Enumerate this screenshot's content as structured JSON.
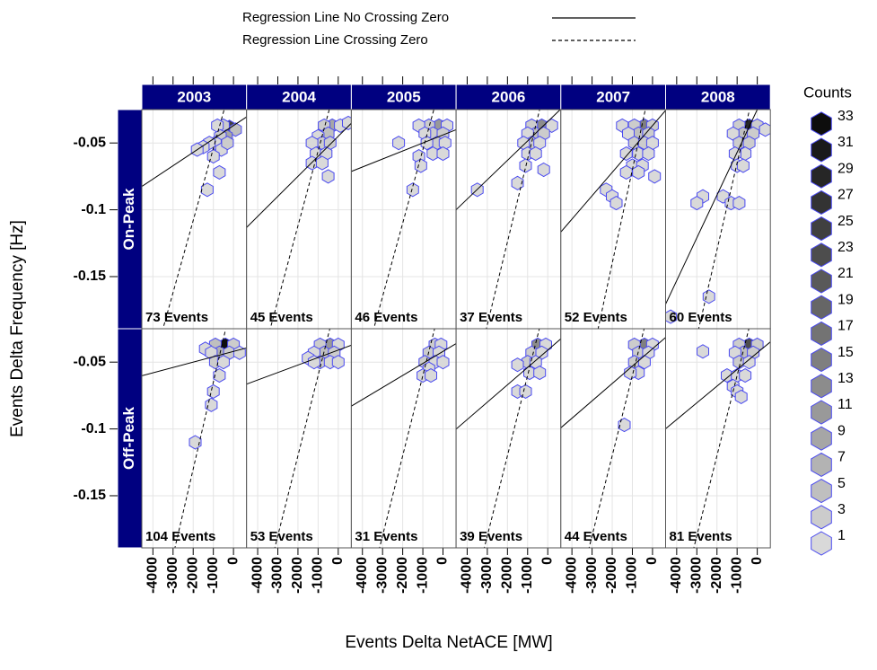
{
  "chart_data": {
    "type": "hexbin",
    "x_label": "Events Delta NetACE [MW]",
    "y_label": "Events Delta Frequency [Hz]",
    "xlim": [
      -4550,
      650
    ],
    "ylim": [
      -0.189,
      -0.025
    ],
    "xticks": [
      -4000,
      -3000,
      -2000,
      -1000,
      0
    ],
    "yticks": [
      -0.05,
      -0.1,
      -0.15
    ],
    "grid": true,
    "columns": [
      "2003",
      "2004",
      "2005",
      "2006",
      "2007",
      "2008"
    ],
    "rows": [
      "On-Peak",
      "Off-Peak"
    ],
    "hex_stroke": "#4a4af0",
    "line_color": "#000000",
    "legend": [
      {
        "name": "Regression Line No Crossing Zero",
        "dash": "solid"
      },
      {
        "name": "Regression Line Crossing Zero",
        "dash": "dashed"
      }
    ],
    "counts_legend": {
      "title": "Counts",
      "values": [
        1,
        3,
        5,
        7,
        9,
        11,
        13,
        15,
        17,
        19,
        21,
        23,
        25,
        27,
        29,
        31,
        33
      ],
      "colors": [
        "#d9d9d9",
        "#cccccc",
        "#bfbfbf",
        "#b3b3b3",
        "#a6a6a6",
        "#999999",
        "#8c8c8c",
        "#7f7f7f",
        "#737373",
        "#666666",
        "#595959",
        "#4d4d4d",
        "#404040",
        "#333333",
        "#262626",
        "#1a1a1a",
        "#0d0d0d"
      ]
    },
    "panels": [
      [
        {
          "label": "73 Events",
          "fit": {
            "intercept": -0.037,
            "slope": 1e-05
          },
          "fit_zero": {
            "slope": 5.4e-05
          },
          "hexes": [
            [
              -200,
              -0.038,
              25
            ],
            [
              -500,
              -0.037,
              3
            ],
            [
              -800,
              -0.037,
              1
            ],
            [
              100,
              -0.04,
              5
            ],
            [
              -350,
              -0.045,
              9
            ],
            [
              -650,
              -0.045,
              3
            ],
            [
              -900,
              -0.05,
              1
            ],
            [
              -1200,
              -0.05,
              1
            ],
            [
              -1500,
              -0.053,
              1
            ],
            [
              -1800,
              -0.055,
              1
            ],
            [
              -600,
              -0.055,
              1
            ],
            [
              -300,
              -0.05,
              3
            ],
            [
              -700,
              -0.072,
              1
            ],
            [
              -1300,
              -0.085,
              1
            ],
            [
              -1000,
              -0.06,
              1
            ]
          ]
        },
        {
          "label": "45 Events",
          "fit": {
            "intercept": -0.045,
            "slope": 1.5e-05
          },
          "fit_zero": {
            "slope": 5.6e-05
          },
          "hexes": [
            [
              -300,
              -0.037,
              9
            ],
            [
              -700,
              -0.037,
              3
            ],
            [
              100,
              -0.037,
              1
            ],
            [
              500,
              -0.035,
              1
            ],
            [
              -500,
              -0.043,
              5
            ],
            [
              -1000,
              -0.045,
              1
            ],
            [
              -800,
              -0.05,
              3
            ],
            [
              -1300,
              -0.05,
              1
            ],
            [
              -400,
              -0.05,
              3
            ],
            [
              -1100,
              -0.058,
              1
            ],
            [
              -600,
              -0.058,
              1
            ],
            [
              -1300,
              -0.065,
              1
            ],
            [
              -800,
              -0.065,
              1
            ],
            [
              -500,
              -0.075,
              1
            ]
          ]
        },
        {
          "label": "46 Events",
          "fit": {
            "intercept": -0.044,
            "slope": 6e-06
          },
          "fit_zero": {
            "slope": 5.5e-05
          },
          "hexes": [
            [
              -200,
              -0.037,
              11
            ],
            [
              -700,
              -0.037,
              3
            ],
            [
              -1200,
              -0.037,
              1
            ],
            [
              200,
              -0.037,
              1
            ],
            [
              -500,
              -0.043,
              3
            ],
            [
              -900,
              -0.043,
              1
            ],
            [
              0,
              -0.043,
              3
            ],
            [
              -300,
              -0.05,
              3
            ],
            [
              -800,
              -0.05,
              1
            ],
            [
              100,
              -0.05,
              1
            ],
            [
              -500,
              -0.058,
              1
            ],
            [
              0,
              -0.058,
              1
            ],
            [
              -1200,
              -0.06,
              1
            ],
            [
              -2200,
              -0.05,
              1
            ],
            [
              -1100,
              -0.067,
              1
            ],
            [
              -1500,
              -0.085,
              1
            ]
          ]
        },
        {
          "label": "37 Events",
          "fit": {
            "intercept": -0.034,
            "slope": 1.45e-05
          },
          "fit_zero": {
            "slope": 6.2e-05
          },
          "hexes": [
            [
              -300,
              -0.037,
              13
            ],
            [
              -800,
              -0.037,
              3
            ],
            [
              200,
              -0.037,
              1
            ],
            [
              -600,
              -0.043,
              5
            ],
            [
              -1000,
              -0.043,
              1
            ],
            [
              -200,
              -0.043,
              3
            ],
            [
              -800,
              -0.05,
              3
            ],
            [
              -1200,
              -0.05,
              1
            ],
            [
              -400,
              -0.05,
              1
            ],
            [
              -1000,
              -0.058,
              1
            ],
            [
              -600,
              -0.058,
              1
            ],
            [
              -1100,
              -0.067,
              1
            ],
            [
              -200,
              -0.07,
              1
            ],
            [
              -1500,
              -0.08,
              1
            ],
            [
              -3500,
              -0.085,
              1
            ]
          ]
        },
        {
          "label": "52 Events",
          "fit": {
            "intercept": -0.037,
            "slope": 1.75e-05
          },
          "fit_zero": {
            "slope": 7e-05
          },
          "hexes": [
            [
              -400,
              -0.037,
              15
            ],
            [
              -900,
              -0.037,
              3
            ],
            [
              0,
              -0.037,
              3
            ],
            [
              -1500,
              -0.037,
              1
            ],
            [
              -700,
              -0.043,
              5
            ],
            [
              -200,
              -0.043,
              3
            ],
            [
              -1200,
              -0.043,
              1
            ],
            [
              -900,
              -0.05,
              3
            ],
            [
              -400,
              -0.05,
              3
            ],
            [
              0,
              -0.05,
              1
            ],
            [
              -1300,
              -0.058,
              1
            ],
            [
              -700,
              -0.058,
              1
            ],
            [
              -200,
              -0.058,
              1
            ],
            [
              -1000,
              -0.067,
              1
            ],
            [
              -500,
              -0.067,
              1
            ],
            [
              -1300,
              -0.072,
              1
            ],
            [
              -700,
              -0.072,
              1
            ],
            [
              100,
              -0.075,
              1
            ],
            [
              -2300,
              -0.085,
              1
            ],
            [
              -2000,
              -0.09,
              1
            ],
            [
              -1800,
              -0.095,
              1
            ]
          ]
        },
        {
          "label": "60 Events",
          "fit": {
            "intercept": -0.025,
            "slope": 3.2e-05
          },
          "fit_zero": {
            "slope": 6.5e-05
          },
          "hexes": [
            [
              -400,
              -0.037,
              29
            ],
            [
              -900,
              -0.037,
              3
            ],
            [
              0,
              -0.037,
              3
            ],
            [
              400,
              -0.04,
              1
            ],
            [
              -700,
              -0.043,
              5
            ],
            [
              -200,
              -0.043,
              3
            ],
            [
              -1200,
              -0.043,
              1
            ],
            [
              -900,
              -0.05,
              3
            ],
            [
              -400,
              -0.05,
              3
            ],
            [
              -600,
              -0.058,
              1
            ],
            [
              -1100,
              -0.058,
              1
            ],
            [
              -1000,
              -0.067,
              1
            ],
            [
              -700,
              -0.067,
              1
            ],
            [
              -1700,
              -0.09,
              1
            ],
            [
              -2700,
              -0.09,
              1
            ],
            [
              -3000,
              -0.095,
              1
            ],
            [
              -1300,
              -0.095,
              1
            ],
            [
              -900,
              -0.095,
              1
            ],
            [
              -2400,
              -0.165,
              1
            ],
            [
              -4300,
              -0.18,
              1
            ]
          ]
        }
      ],
      [
        {
          "label": "104 Events",
          "fit": {
            "intercept": -0.042,
            "slope": 4e-06
          },
          "fit_zero": {
            "slope": 6.5e-05
          },
          "hexes": [
            [
              -400,
              -0.037,
              33
            ],
            [
              -900,
              -0.037,
              5
            ],
            [
              0,
              -0.037,
              3
            ],
            [
              -1400,
              -0.04,
              1
            ],
            [
              -700,
              -0.043,
              7
            ],
            [
              -200,
              -0.043,
              3
            ],
            [
              -1100,
              -0.043,
              1
            ],
            [
              300,
              -0.043,
              1
            ],
            [
              -900,
              -0.05,
              3
            ],
            [
              -500,
              -0.05,
              1
            ],
            [
              -700,
              -0.06,
              1
            ],
            [
              -1000,
              -0.072,
              1
            ],
            [
              -1100,
              -0.082,
              1
            ],
            [
              -1900,
              -0.11,
              1
            ]
          ]
        },
        {
          "label": "53 Events",
          "fit": {
            "intercept": -0.041,
            "slope": 5.6e-06
          },
          "fit_zero": {
            "slope": 6e-05
          },
          "hexes": [
            [
              -400,
              -0.037,
              11
            ],
            [
              -900,
              -0.037,
              3
            ],
            [
              0,
              -0.037,
              1
            ],
            [
              -700,
              -0.043,
              5
            ],
            [
              -200,
              -0.043,
              3
            ],
            [
              -1200,
              -0.043,
              1
            ],
            [
              -1500,
              -0.047,
              1
            ],
            [
              -900,
              -0.05,
              3
            ],
            [
              -400,
              -0.05,
              1
            ],
            [
              0,
              -0.05,
              1
            ],
            [
              -1200,
              -0.05,
              1
            ]
          ]
        },
        {
          "label": "31 Events",
          "fit": {
            "intercept": -0.042,
            "slope": 9e-06
          },
          "fit_zero": {
            "slope": 6e-05
          },
          "hexes": [
            [
              -400,
              -0.037,
              3
            ],
            [
              -100,
              -0.037,
              1
            ],
            [
              -700,
              -0.043,
              3
            ],
            [
              -200,
              -0.043,
              1
            ],
            [
              -900,
              -0.05,
              3
            ],
            [
              -400,
              -0.05,
              1
            ],
            [
              0,
              -0.05,
              1
            ],
            [
              -700,
              -0.055,
              1
            ],
            [
              -1000,
              -0.06,
              1
            ],
            [
              -600,
              -0.06,
              1
            ]
          ]
        },
        {
          "label": "39 Events",
          "fit": {
            "intercept": -0.041,
            "slope": 1.3e-05
          },
          "fit_zero": {
            "slope": 6e-05
          },
          "hexes": [
            [
              -500,
              -0.037,
              13
            ],
            [
              -100,
              -0.037,
              1
            ],
            [
              -800,
              -0.043,
              3
            ],
            [
              -300,
              -0.043,
              1
            ],
            [
              -1000,
              -0.05,
              3
            ],
            [
              -600,
              -0.05,
              1
            ],
            [
              -1500,
              -0.052,
              1
            ],
            [
              -900,
              -0.058,
              1
            ],
            [
              -400,
              -0.058,
              1
            ],
            [
              -1500,
              -0.072,
              1
            ],
            [
              -1100,
              -0.072,
              1
            ]
          ]
        },
        {
          "label": "44 Events",
          "fit": {
            "intercept": -0.04,
            "slope": 1.3e-05
          },
          "fit_zero": {
            "slope": 6e-05
          },
          "hexes": [
            [
              -400,
              -0.037,
              15
            ],
            [
              -900,
              -0.037,
              3
            ],
            [
              0,
              -0.037,
              1
            ],
            [
              -700,
              -0.043,
              3
            ],
            [
              -200,
              -0.043,
              1
            ],
            [
              -900,
              -0.05,
              3
            ],
            [
              -400,
              -0.05,
              1
            ],
            [
              -700,
              -0.058,
              1
            ],
            [
              -1100,
              -0.058,
              1
            ],
            [
              -1400,
              -0.097,
              1
            ]
          ]
        },
        {
          "label": "81 Events",
          "fit": {
            "intercept": -0.043,
            "slope": 1.25e-05
          },
          "fit_zero": {
            "slope": 6e-05
          },
          "hexes": [
            [
              -400,
              -0.037,
              23
            ],
            [
              -900,
              -0.037,
              3
            ],
            [
              0,
              -0.037,
              3
            ],
            [
              -700,
              -0.043,
              5
            ],
            [
              -200,
              -0.043,
              3
            ],
            [
              -1100,
              -0.043,
              1
            ],
            [
              -2700,
              -0.042,
              1
            ],
            [
              -900,
              -0.05,
              3
            ],
            [
              -400,
              -0.05,
              1
            ],
            [
              -1500,
              -0.06,
              1
            ],
            [
              -1000,
              -0.06,
              1
            ],
            [
              -600,
              -0.06,
              1
            ],
            [
              -1200,
              -0.068,
              1
            ],
            [
              -1000,
              -0.072,
              1
            ],
            [
              -800,
              -0.076,
              1
            ]
          ]
        }
      ]
    ]
  }
}
